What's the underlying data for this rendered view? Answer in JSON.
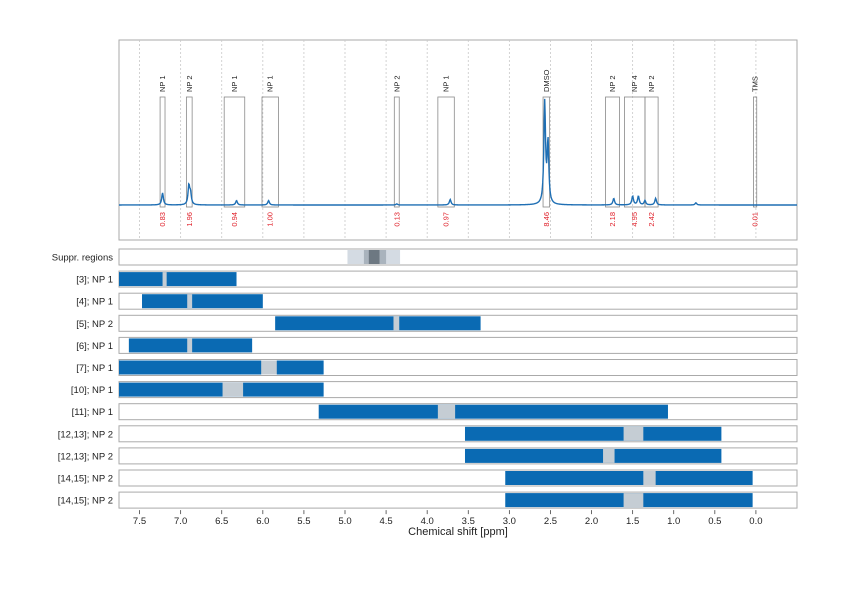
{
  "chart_data": {
    "type": "nmr-spectrum-with-range-bars",
    "xlabel": "Chemical shift [ppm]",
    "x_range": [
      7.75,
      -0.5
    ],
    "x_reversed": true,
    "x_ticks": [
      "7.5",
      "7.0",
      "6.5",
      "6.0",
      "5.5",
      "5.0",
      "4.5",
      "4.0",
      "3.5",
      "3.0",
      "2.5",
      "2.0",
      "1.5",
      "1.0",
      "0.5",
      "0.0"
    ],
    "x_tick_values": [
      7.5,
      7.0,
      6.5,
      6.0,
      5.5,
      5.0,
      4.5,
      4.0,
      3.5,
      3.0,
      2.5,
      2.0,
      1.5,
      1.0,
      0.5,
      0.0
    ],
    "grid_vertical": true,
    "spectrum": {
      "color": "#1f6fb4",
      "peaks": [
        {
          "ppm": 7.22,
          "height": 0.11
        },
        {
          "ppm": 6.9,
          "height": 0.17
        },
        {
          "ppm": 6.88,
          "height": 0.1
        },
        {
          "ppm": 6.32,
          "height": 0.04
        },
        {
          "ppm": 5.93,
          "height": 0.04
        },
        {
          "ppm": 4.37,
          "height": 0.01
        },
        {
          "ppm": 3.72,
          "height": 0.05
        },
        {
          "ppm": 2.57,
          "height": 0.92
        },
        {
          "ppm": 2.53,
          "height": 0.55
        },
        {
          "ppm": 1.73,
          "height": 0.06
        },
        {
          "ppm": 1.5,
          "height": 0.08
        },
        {
          "ppm": 1.43,
          "height": 0.08
        },
        {
          "ppm": 1.35,
          "height": 0.04
        },
        {
          "ppm": 1.22,
          "height": 0.06
        },
        {
          "ppm": 0.73,
          "height": 0.02
        }
      ]
    },
    "annotations": [
      {
        "label": "NP 1",
        "value": "0.83",
        "from": 7.25,
        "to": 7.19
      },
      {
        "label": "NP 2",
        "value": "1.96",
        "from": 6.93,
        "to": 6.86
      },
      {
        "label": "NP 1",
        "value": "0.94",
        "from": 6.47,
        "to": 6.22
      },
      {
        "label": "NP 1",
        "value": "1.00",
        "from": 6.01,
        "to": 5.81
      },
      {
        "label": "NP 2",
        "value": "0.13",
        "from": 4.4,
        "to": 4.34
      },
      {
        "label": "NP 1",
        "value": "0.97",
        "from": 3.87,
        "to": 3.67
      },
      {
        "label": "DMSO",
        "value": "8.46",
        "from": 2.59,
        "to": 2.51
      },
      {
        "label": "NP 2",
        "value": "2.18",
        "from": 1.83,
        "to": 1.66
      },
      {
        "label": "NP 4",
        "value": "4.95",
        "from": 1.6,
        "to": 1.35
      },
      {
        "label": "NP 2",
        "value": "2.42",
        "from": 1.35,
        "to": 1.19
      },
      {
        "label": "TMS",
        "value": "0.01",
        "from": 0.03,
        "to": -0.01
      }
    ],
    "rows": [
      {
        "label": "Suppr. regions",
        "type": "suppression",
        "segments": [
          {
            "from": 4.97,
            "to": 4.33,
            "color": "#d4dbe3"
          },
          {
            "from": 4.77,
            "to": 4.5,
            "color": "#a9b3bd"
          },
          {
            "from": 4.71,
            "to": 4.58,
            "color": "#6d7882"
          }
        ]
      },
      {
        "label": "[3]; NP 1",
        "segments": [
          {
            "from": 7.75,
            "to": 6.32
          }
        ],
        "gaps": [
          {
            "from": 7.22,
            "to": 7.17
          }
        ]
      },
      {
        "label": "[4]; NP 1",
        "segments": [
          {
            "from": 7.47,
            "to": 6.0
          }
        ],
        "gaps": [
          {
            "from": 6.92,
            "to": 6.86
          }
        ]
      },
      {
        "label": "[5]; NP 2",
        "segments": [
          {
            "from": 5.85,
            "to": 3.35
          }
        ],
        "gaps": [
          {
            "from": 4.41,
            "to": 4.34
          }
        ]
      },
      {
        "label": "[6]; NP 1",
        "segments": [
          {
            "from": 7.63,
            "to": 6.13
          }
        ],
        "gaps": [
          {
            "from": 6.92,
            "to": 6.86
          }
        ]
      },
      {
        "label": "[7]; NP 1",
        "segments": [
          {
            "from": 7.75,
            "to": 5.26
          }
        ],
        "gaps": [
          {
            "from": 6.02,
            "to": 5.83
          }
        ]
      },
      {
        "label": "[10]; NP 1",
        "segments": [
          {
            "from": 7.75,
            "to": 5.26
          }
        ],
        "gaps": [
          {
            "from": 6.49,
            "to": 6.24
          }
        ]
      },
      {
        "label": "[11]; NP 1",
        "segments": [
          {
            "from": 5.32,
            "to": 1.07
          }
        ],
        "gaps": [
          {
            "from": 3.87,
            "to": 3.66
          }
        ]
      },
      {
        "label": "[12,13]; NP 2",
        "segments": [
          {
            "from": 3.54,
            "to": 0.42
          }
        ],
        "gaps": [
          {
            "from": 1.61,
            "to": 1.37
          }
        ]
      },
      {
        "label": "[12,13]; NP 2",
        "segments": [
          {
            "from": 3.54,
            "to": 0.42
          }
        ],
        "gaps": [
          {
            "from": 1.86,
            "to": 1.72
          }
        ]
      },
      {
        "label": "[14,15]; NP 2",
        "segments": [
          {
            "from": 3.05,
            "to": 0.04
          }
        ],
        "gaps": [
          {
            "from": 1.37,
            "to": 1.22
          }
        ]
      },
      {
        "label": "[14,15]; NP 2",
        "segments": [
          {
            "from": 3.05,
            "to": 0.04
          }
        ],
        "gaps": [
          {
            "from": 1.61,
            "to": 1.37
          }
        ]
      }
    ],
    "colors": {
      "bar": "#0a6ab3",
      "gap": "#c5cdd4",
      "annotation_value": "#e0202a",
      "frame": "#aaaaaa",
      "grid": "#c8c8c8"
    }
  }
}
